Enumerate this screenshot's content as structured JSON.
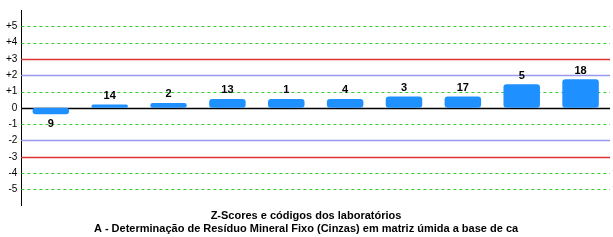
{
  "chart_data": {
    "type": "bar",
    "title": "Z-Scores e códigos dos laboratórios",
    "subtitle": "A - Determinação de Resíduo Mineral Fixo (Cinzas) em matriz úmida a base de ca",
    "categories": [
      "9",
      "14",
      "2",
      "13",
      "1",
      "4",
      "3",
      "17",
      "5",
      "18"
    ],
    "values": [
      -0.4,
      0.2,
      0.3,
      0.55,
      0.55,
      0.55,
      0.7,
      0.7,
      1.45,
      1.75
    ],
    "color": "#1e90ff",
    "ylim": [
      -6,
      6
    ],
    "yticks": [
      -5,
      -4,
      -3,
      -2,
      -1,
      0,
      {
        "value": 1,
        "label": "+1"
      },
      {
        "value": 2,
        "label": "+2"
      },
      {
        "value": 3,
        "label": "+3"
      },
      {
        "value": 4,
        "label": "+4"
      },
      {
        "value": 5,
        "label": "+5"
      }
    ],
    "warning_limits": [
      -2,
      2
    ],
    "action_limits": [
      -3,
      3
    ],
    "grid": true,
    "tick_labels": "y"
  }
}
